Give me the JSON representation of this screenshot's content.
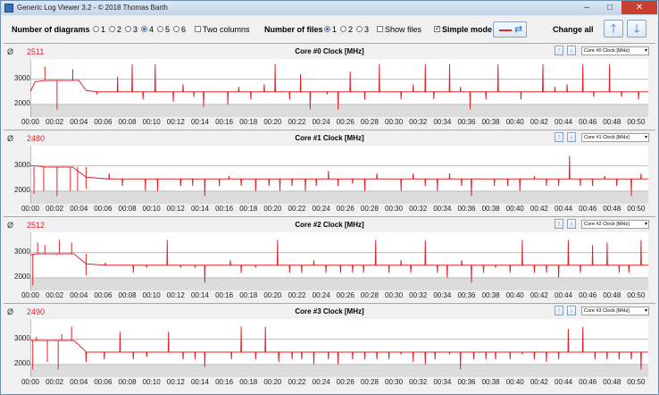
{
  "window": {
    "title": "Generic Log Viewer 3.2 - © 2018 Thomas Barth",
    "minimize": "–",
    "maximize": "□",
    "close": "✕"
  },
  "toolbar": {
    "diagrams_label": "Number of diagrams",
    "diagram_options": [
      "1",
      "2",
      "3",
      "4",
      "5",
      "6"
    ],
    "diagrams_selected": "4",
    "two_columns_label": "Two columns",
    "two_columns_checked": false,
    "files_label": "Number of files",
    "file_options": [
      "1",
      "2",
      "3"
    ],
    "files_selected": "1",
    "show_files_label": "Show files",
    "show_files_checked": false,
    "simple_mode_label": "Simple mode",
    "simple_mode_checked": true,
    "change_all_label": "Change all",
    "up_arrow": "🡑",
    "down_arrow": "🡓",
    "swap_glyph": "⇄",
    "series_color": "#e0262c"
  },
  "panels": [
    {
      "avg_symbol": "Ø",
      "avg_value": "2511",
      "title": "Core #0 Clock [MHz]",
      "channel": "Core #0 Clock [MHz]"
    },
    {
      "avg_symbol": "Ø",
      "avg_value": "2480",
      "title": "Core #1 Clock [MHz]",
      "channel": "Core #1 Clock [MHz]"
    },
    {
      "avg_symbol": "Ø",
      "avg_value": "2512",
      "title": "Core #2 Clock [MHz]",
      "channel": "Core #2 Clock [MHz]"
    },
    {
      "avg_symbol": "Ø",
      "avg_value": "2490",
      "title": "Core #3 Clock [MHz]",
      "channel": "Core #3 Clock [MHz]"
    }
  ],
  "chart_data": [
    {
      "type": "line",
      "title": "Core #0 Clock [MHz]",
      "ylim": [
        1500,
        3800
      ],
      "yticks": [
        2000,
        3000
      ],
      "xlim": [
        0,
        51
      ],
      "xticks": [
        "00:00",
        "00:02",
        "00:04",
        "00:06",
        "00:08",
        "00:10",
        "00:12",
        "00:14",
        "00:16",
        "00:18",
        "00:20",
        "00:22",
        "00:24",
        "00:26",
        "00:28",
        "00:30",
        "00:32",
        "00:34",
        "00:36",
        "00:38",
        "00:40",
        "00:42",
        "00:44",
        "00:46",
        "00:48",
        "00:50"
      ],
      "grid": true,
      "baseline": 2500,
      "start": [
        [
          0,
          2500
        ],
        [
          0.4,
          2900
        ],
        [
          1.2,
          2950
        ],
        [
          4,
          2950
        ],
        [
          4.6,
          2550
        ]
      ],
      "spikes": [
        [
          1.2,
          3500
        ],
        [
          2.2,
          1800
        ],
        [
          3.5,
          3400
        ],
        [
          5.5,
          2400
        ],
        [
          7.2,
          3100
        ],
        [
          8.4,
          3600
        ],
        [
          9.3,
          2200
        ],
        [
          10.3,
          3600
        ],
        [
          11.8,
          2100
        ],
        [
          12.6,
          2800
        ],
        [
          13.5,
          2300
        ],
        [
          14.3,
          1900
        ],
        [
          16.3,
          2000
        ],
        [
          17.2,
          2700
        ],
        [
          18.2,
          2200
        ],
        [
          19.3,
          2800
        ],
        [
          20.2,
          3600
        ],
        [
          21.4,
          2200
        ],
        [
          22.3,
          3200
        ],
        [
          23.1,
          1800
        ],
        [
          24.5,
          2400
        ],
        [
          25.4,
          1800
        ],
        [
          26.4,
          3300
        ],
        [
          27.6,
          2200
        ],
        [
          28.8,
          3600
        ],
        [
          30.6,
          2200
        ],
        [
          31.6,
          2800
        ],
        [
          32.6,
          3600
        ],
        [
          33.3,
          2200
        ],
        [
          34.6,
          3600
        ],
        [
          35.5,
          2700
        ],
        [
          36.3,
          1800
        ],
        [
          37.6,
          2200
        ],
        [
          38.6,
          3600
        ],
        [
          40.5,
          2200
        ],
        [
          42.3,
          3600
        ],
        [
          43.3,
          2700
        ],
        [
          44.3,
          2800
        ],
        [
          45.6,
          3600
        ],
        [
          46.5,
          2300
        ],
        [
          47.8,
          3600
        ],
        [
          48.8,
          2300
        ],
        [
          50.2,
          2200
        ]
      ]
    },
    {
      "type": "line",
      "title": "Core #1 Clock [MHz]",
      "ylim": [
        1500,
        3800
      ],
      "yticks": [
        2000,
        3000
      ],
      "xlim": [
        0,
        51
      ],
      "xticks": [
        "00:00",
        "00:02",
        "00:04",
        "00:06",
        "00:08",
        "00:10",
        "00:12",
        "00:14",
        "00:16",
        "00:18",
        "00:20",
        "00:22",
        "00:24",
        "00:26",
        "00:28",
        "00:30",
        "00:32",
        "00:34",
        "00:36",
        "00:38",
        "00:40",
        "00:42",
        "00:44",
        "00:46",
        "00:48",
        "00:50"
      ],
      "grid": true,
      "baseline": 2480,
      "start": [
        [
          0,
          3000
        ],
        [
          0.5,
          3000
        ],
        [
          1.2,
          2950
        ],
        [
          3.5,
          2950
        ],
        [
          4.6,
          2550
        ]
      ],
      "spikes": [
        [
          0.3,
          1900
        ],
        [
          1.1,
          2000
        ],
        [
          2.2,
          1800
        ],
        [
          3.3,
          2000
        ],
        [
          3.9,
          2000
        ],
        [
          4.6,
          2100
        ],
        [
          6.5,
          2700
        ],
        [
          7.6,
          2200
        ],
        [
          9.5,
          2000
        ],
        [
          10.5,
          2000
        ],
        [
          12.4,
          2200
        ],
        [
          13.4,
          2200
        ],
        [
          14.4,
          1800
        ],
        [
          15.6,
          2200
        ],
        [
          16.4,
          2600
        ],
        [
          17.4,
          2200
        ],
        [
          18.6,
          2000
        ],
        [
          19.7,
          2200
        ],
        [
          20.6,
          2000
        ],
        [
          21.6,
          2200
        ],
        [
          22.7,
          2000
        ],
        [
          23.6,
          2200
        ],
        [
          24.6,
          2800
        ],
        [
          25.4,
          2200
        ],
        [
          26.6,
          2300
        ],
        [
          27.6,
          2000
        ],
        [
          28.6,
          2700
        ],
        [
          30.6,
          2000
        ],
        [
          31.6,
          2700
        ],
        [
          32.6,
          2200
        ],
        [
          33.6,
          2000
        ],
        [
          34.6,
          2700
        ],
        [
          35.6,
          2200
        ],
        [
          36.4,
          1800
        ],
        [
          38.3,
          2200
        ],
        [
          39.4,
          2200
        ],
        [
          40.4,
          2000
        ],
        [
          41.6,
          2600
        ],
        [
          42.6,
          2200
        ],
        [
          43.6,
          2200
        ],
        [
          44.5,
          3400
        ],
        [
          45.4,
          2200
        ],
        [
          46.4,
          2200
        ],
        [
          47.4,
          2600
        ],
        [
          48.4,
          2200
        ],
        [
          49.6,
          1800
        ],
        [
          50.4,
          2700
        ]
      ]
    },
    {
      "type": "line",
      "title": "Core #2 Clock [MHz]",
      "ylim": [
        1500,
        3800
      ],
      "yticks": [
        2000,
        3000
      ],
      "xlim": [
        0,
        51
      ],
      "xticks": [
        "00:00",
        "00:02",
        "00:04",
        "00:06",
        "00:08",
        "00:10",
        "00:12",
        "00:14",
        "00:16",
        "00:18",
        "00:20",
        "00:22",
        "00:24",
        "00:26",
        "00:28",
        "00:30",
        "00:32",
        "00:34",
        "00:36",
        "00:38",
        "00:40",
        "00:42",
        "00:44",
        "00:46",
        "00:48",
        "00:50"
      ],
      "grid": true,
      "baseline": 2500,
      "start": [
        [
          0,
          2900
        ],
        [
          0.5,
          2950
        ],
        [
          1.2,
          2950
        ],
        [
          3.6,
          2950
        ],
        [
          4.6,
          2550
        ]
      ],
      "spikes": [
        [
          0.2,
          1700
        ],
        [
          0.6,
          3400
        ],
        [
          1.2,
          3300
        ],
        [
          2.2,
          2900
        ],
        [
          2.4,
          3500
        ],
        [
          3.4,
          3400
        ],
        [
          4.6,
          2100
        ],
        [
          6.2,
          2600
        ],
        [
          8.5,
          2200
        ],
        [
          9.6,
          2400
        ],
        [
          11.3,
          3500
        ],
        [
          12.4,
          2400
        ],
        [
          13.6,
          2400
        ],
        [
          14.4,
          1800
        ],
        [
          16.5,
          2700
        ],
        [
          17.4,
          2200
        ],
        [
          18.6,
          2400
        ],
        [
          20.4,
          3500
        ],
        [
          21.4,
          2200
        ],
        [
          22.4,
          2200
        ],
        [
          23.4,
          2700
        ],
        [
          24.4,
          2200
        ],
        [
          25.6,
          2200
        ],
        [
          26.6,
          2200
        ],
        [
          27.5,
          2200
        ],
        [
          28.5,
          3500
        ],
        [
          29.6,
          2200
        ],
        [
          30.6,
          2700
        ],
        [
          31.4,
          2200
        ],
        [
          32.6,
          3500
        ],
        [
          33.6,
          2200
        ],
        [
          34.4,
          2000
        ],
        [
          35.6,
          2700
        ],
        [
          36.4,
          1800
        ],
        [
          37.4,
          2200
        ],
        [
          38.4,
          2400
        ],
        [
          39.6,
          2200
        ],
        [
          40.6,
          3500
        ],
        [
          41.6,
          2200
        ],
        [
          42.6,
          2200
        ],
        [
          43.6,
          2000
        ],
        [
          44.4,
          3500
        ],
        [
          45.4,
          2200
        ],
        [
          46.4,
          3300
        ],
        [
          47.6,
          3400
        ],
        [
          48.6,
          2200
        ],
        [
          49.4,
          2200
        ],
        [
          50.4,
          3500
        ]
      ]
    },
    {
      "type": "line",
      "title": "Core #3 Clock [MHz]",
      "ylim": [
        1500,
        3800
      ],
      "yticks": [
        2000,
        3000
      ],
      "xlim": [
        0,
        51
      ],
      "xticks": [
        "00:00",
        "00:02",
        "00:04",
        "00:06",
        "00:08",
        "00:10",
        "00:12",
        "00:14",
        "00:16",
        "00:18",
        "00:20",
        "00:22",
        "00:24",
        "00:26",
        "00:28",
        "00:30",
        "00:32",
        "00:34",
        "00:36",
        "00:38",
        "00:40",
        "00:42",
        "00:44",
        "00:46",
        "00:48",
        "00:50"
      ],
      "grid": true,
      "baseline": 2490,
      "start": [
        [
          0,
          2950
        ],
        [
          0.6,
          2950
        ],
        [
          1.2,
          2950
        ],
        [
          3.6,
          2950
        ],
        [
          4.5,
          2550
        ]
      ],
      "spikes": [
        [
          0.2,
          1800
        ],
        [
          0.5,
          3100
        ],
        [
          1.4,
          2100
        ],
        [
          2.3,
          1800
        ],
        [
          2.6,
          3200
        ],
        [
          3.4,
          3500
        ],
        [
          4.6,
          2100
        ],
        [
          6.1,
          2200
        ],
        [
          7.4,
          3300
        ],
        [
          8.5,
          2200
        ],
        [
          9.6,
          2300
        ],
        [
          11.4,
          3300
        ],
        [
          12.6,
          2200
        ],
        [
          13.6,
          2200
        ],
        [
          14.4,
          1900
        ],
        [
          16.6,
          2200
        ],
        [
          17.4,
          3500
        ],
        [
          18.6,
          2200
        ],
        [
          19.4,
          3500
        ],
        [
          20.5,
          2100
        ],
        [
          21.6,
          2200
        ],
        [
          22.4,
          2200
        ],
        [
          23.4,
          2000
        ],
        [
          24.6,
          2200
        ],
        [
          25.4,
          2000
        ],
        [
          26.6,
          2200
        ],
        [
          27.6,
          2200
        ],
        [
          28.6,
          2200
        ],
        [
          29.6,
          2200
        ],
        [
          30.6,
          2400
        ],
        [
          31.6,
          2100
        ],
        [
          32.6,
          2000
        ],
        [
          33.4,
          2200
        ],
        [
          34.6,
          2400
        ],
        [
          35.5,
          1800
        ],
        [
          36.6,
          2200
        ],
        [
          37.6,
          2200
        ],
        [
          38.4,
          2200
        ],
        [
          39.6,
          2200
        ],
        [
          40.6,
          2400
        ],
        [
          41.6,
          2200
        ],
        [
          42.6,
          2100
        ],
        [
          43.6,
          2200
        ],
        [
          44.4,
          3400
        ],
        [
          45.6,
          3500
        ],
        [
          46.6,
          2200
        ],
        [
          47.6,
          2200
        ],
        [
          48.6,
          2200
        ],
        [
          49.6,
          2200
        ],
        [
          50.4,
          1800
        ]
      ]
    }
  ]
}
